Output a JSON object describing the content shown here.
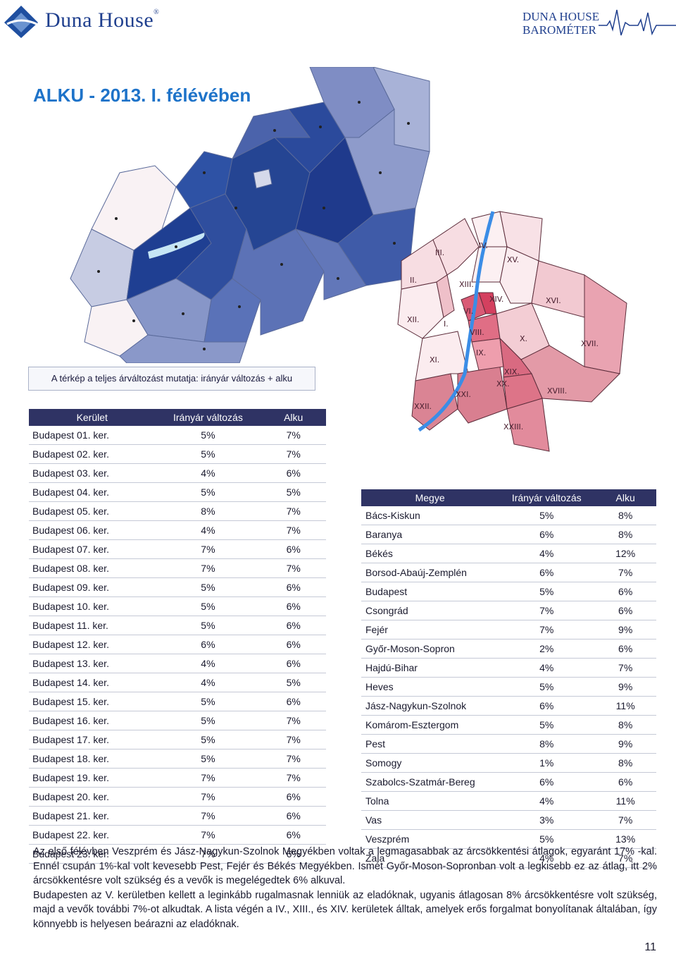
{
  "header": {
    "logo_name": "Duna House",
    "logo_reg": "®",
    "baro_line1": "DUNA HOUSE",
    "baro_line2": "BAROMÉTER"
  },
  "title": "ALKU - 2013. I. félévében",
  "map_caption": "A térkép a teljes árváltozást mutatja: irányár változás + alku",
  "district_table": {
    "headers": [
      "Kerület",
      "Irányár változás",
      "Alku"
    ],
    "rows": [
      [
        "Budapest 01. ker.",
        "5%",
        "7%"
      ],
      [
        "Budapest 02. ker.",
        "5%",
        "7%"
      ],
      [
        "Budapest 03. ker.",
        "4%",
        "6%"
      ],
      [
        "Budapest 04. ker.",
        "5%",
        "5%"
      ],
      [
        "Budapest 05. ker.",
        "8%",
        "7%"
      ],
      [
        "Budapest 06. ker.",
        "4%",
        "7%"
      ],
      [
        "Budapest 07. ker.",
        "7%",
        "6%"
      ],
      [
        "Budapest 08. ker.",
        "7%",
        "7%"
      ],
      [
        "Budapest 09. ker.",
        "5%",
        "6%"
      ],
      [
        "Budapest 10. ker.",
        "5%",
        "6%"
      ],
      [
        "Budapest 11. ker.",
        "5%",
        "6%"
      ],
      [
        "Budapest 12. ker.",
        "6%",
        "6%"
      ],
      [
        "Budapest 13. ker.",
        "4%",
        "6%"
      ],
      [
        "Budapest 14. ker.",
        "4%",
        "5%"
      ],
      [
        "Budapest 15. ker.",
        "5%",
        "6%"
      ],
      [
        "Budapest 16. ker.",
        "5%",
        "7%"
      ],
      [
        "Budapest 17. ker.",
        "5%",
        "7%"
      ],
      [
        "Budapest 18. ker.",
        "5%",
        "7%"
      ],
      [
        "Budapest 19. ker.",
        "7%",
        "7%"
      ],
      [
        "Budapest 20. ker.",
        "7%",
        "6%"
      ],
      [
        "Budapest 21. ker.",
        "7%",
        "6%"
      ],
      [
        "Budapest 22. ker.",
        "7%",
        "6%"
      ],
      [
        "Budapest 23. ker.",
        "7%",
        "6%"
      ]
    ]
  },
  "county_table": {
    "headers": [
      "Megye",
      "Irányár változás",
      "Alku"
    ],
    "rows": [
      [
        "Bács-Kiskun",
        "5%",
        "8%"
      ],
      [
        "Baranya",
        "6%",
        "8%"
      ],
      [
        "Békés",
        "4%",
        "12%"
      ],
      [
        "Borsod-Abaúj-Zemplén",
        "6%",
        "7%"
      ],
      [
        "Budapest",
        "5%",
        "6%"
      ],
      [
        "Csongrád",
        "7%",
        "6%"
      ],
      [
        "Fejér",
        "7%",
        "9%"
      ],
      [
        "Győr-Moson-Sopron",
        "2%",
        "6%"
      ],
      [
        "Hajdú-Bihar",
        "4%",
        "7%"
      ],
      [
        "Heves",
        "5%",
        "9%"
      ],
      [
        "Jász-Nagykun-Szolnok",
        "6%",
        "11%"
      ],
      [
        "Komárom-Esztergom",
        "5%",
        "8%"
      ],
      [
        "Pest",
        "8%",
        "9%"
      ],
      [
        "Somogy",
        "1%",
        "8%"
      ],
      [
        "Szabolcs-Szatmár-Bereg",
        "6%",
        "6%"
      ],
      [
        "Tolna",
        "4%",
        "11%"
      ],
      [
        "Vas",
        "3%",
        "7%"
      ],
      [
        "Veszprém",
        "5%",
        "13%"
      ],
      [
        "Zala",
        "4%",
        "7%"
      ]
    ]
  },
  "bp_map_labels": [
    "I.",
    "II.",
    "III.",
    "IV.",
    "V.",
    "VI.",
    "VIII.",
    "IX.",
    "X.",
    "XI.",
    "XII.",
    "XIII.",
    "XIV.",
    "XV.",
    "XVI.",
    "XVII.",
    "XVIII.",
    "XIX.",
    "XX.",
    "XXI.",
    "XXII.",
    "XXIII."
  ],
  "paragraph1": "Az első félévben Veszprém és Jász-Nagykun-Szolnok Megyékben voltak a legmagasabbak az árcsökkentési átlagok, egyaránt 17% -kal. Ennél csupán 1%-kal volt kevesebb Pest, Fejér és Békés Megyékben. Ismét Győr-Moson-Sopronban volt a legkisebb ez az átlag, itt 2% árcsökkentésre volt szükség és a vevők is megelégedtek 6% alkuval.",
  "paragraph2": "Budapesten az V. kerületben kellett a leginkább rugalmasnak lenniük az eladóknak, ugyanis átlagosan 8% árcsökkentésre volt szükség, majd a vevők további 7%-ot alkudtak. A lista végén a IV., XIII., és XIV. kerületek álltak, amelyek erős forgalmat bonyolítanak általában, így könnyebb is helyesen beárazni az eladóknak.",
  "page_number": "11",
  "colors": {
    "header_navy": "#2f3364",
    "title_blue": "#1e73c9",
    "logo_blue": "#1f3f8e",
    "map_blue_dark": "#2c4a9a",
    "map_red_dark": "#c83c5a"
  }
}
